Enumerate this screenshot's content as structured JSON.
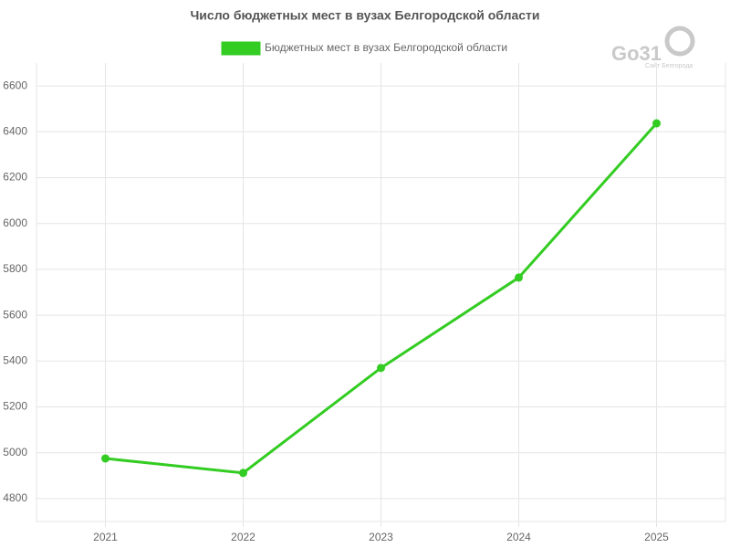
{
  "chart_data": {
    "type": "line",
    "title": "Число бюджетных мест в вузах Белгородской области",
    "categories": [
      "2021",
      "2022",
      "2023",
      "2024",
      "2025"
    ],
    "series": [
      {
        "name": "Бюджетных мест в вузах Белгородской области",
        "color": "#33cc22",
        "values": [
          4975,
          4912,
          5370,
          5764,
          6437
        ]
      }
    ],
    "ylim": [
      4700,
      6700
    ],
    "yticks": [
      4800,
      5000,
      5200,
      5400,
      5600,
      5800,
      6000,
      6200,
      6400,
      6600
    ],
    "grid": true,
    "legend": "top",
    "watermark": {
      "logo": "Go31",
      "caption": "Сайт Белгорода"
    }
  }
}
